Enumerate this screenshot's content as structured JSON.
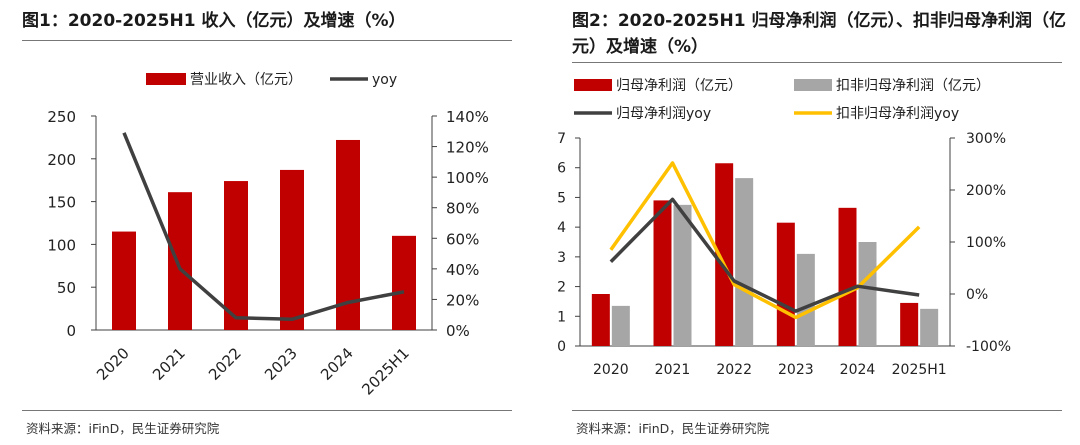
{
  "left": {
    "title": "图1：2020-2025H1 收入（亿元）及增速（%）",
    "source": "资料来源：iFinD，民生证券研究院"
  },
  "right": {
    "title": "图2：2020-2025H1 归母净利润（亿元）、扣非归母净利润（亿元）及增速（%）",
    "source": "资料来源：iFinD，民生证券研究院"
  },
  "colors": {
    "red": "#C00000",
    "gray": "#A6A6A6",
    "dark": "#404040",
    "yellow": "#FFC000"
  },
  "chart_data": [
    {
      "type": "bar",
      "categories": [
        "2020",
        "2021",
        "2022",
        "2023",
        "2024",
        "2025H1"
      ],
      "series": [
        {
          "name": "营业收入（亿元）",
          "type": "bar",
          "axis": "left",
          "values": [
            115,
            161,
            174,
            187,
            222,
            110
          ]
        },
        {
          "name": "yoy",
          "type": "line",
          "axis": "right",
          "values": [
            129,
            40,
            8,
            7,
            18,
            25
          ]
        }
      ],
      "yleft": {
        "ylim": [
          0,
          250
        ],
        "ticks": [
          "0",
          "50",
          "100",
          "150",
          "200",
          "250"
        ]
      },
      "yright": {
        "ylim": [
          0,
          140
        ],
        "ticks": [
          "0%",
          "20%",
          "40%",
          "60%",
          "80%",
          "100%",
          "120%",
          "140%"
        ]
      },
      "legend": "top"
    },
    {
      "type": "bar",
      "categories": [
        "2020",
        "2021",
        "2022",
        "2023",
        "2024",
        "2025H1"
      ],
      "series": [
        {
          "name": "归母净利润（亿元）",
          "type": "bar",
          "axis": "left",
          "values": [
            1.75,
            4.9,
            6.15,
            4.15,
            4.65,
            1.45
          ]
        },
        {
          "name": "扣非归母净利润（亿元）",
          "type": "bar",
          "axis": "left",
          "values": [
            1.35,
            4.75,
            5.65,
            3.1,
            3.5,
            1.25
          ]
        },
        {
          "name": "归母净利润yoy",
          "type": "line",
          "axis": "right",
          "values": [
            62,
            182,
            25,
            -33,
            15,
            -2
          ]
        },
        {
          "name": "扣非归母净利润yoy",
          "type": "line",
          "axis": "right",
          "values": [
            85,
            252,
            18,
            -45,
            12,
            129
          ]
        }
      ],
      "yleft": {
        "ylim": [
          0,
          7
        ],
        "ticks": [
          "0",
          "1",
          "2",
          "3",
          "4",
          "5",
          "6",
          "7"
        ]
      },
      "yright": {
        "ylim": [
          -100,
          300
        ],
        "ticks": [
          "-100%",
          "0%",
          "100%",
          "200%",
          "300%"
        ]
      },
      "legend": "top"
    }
  ]
}
